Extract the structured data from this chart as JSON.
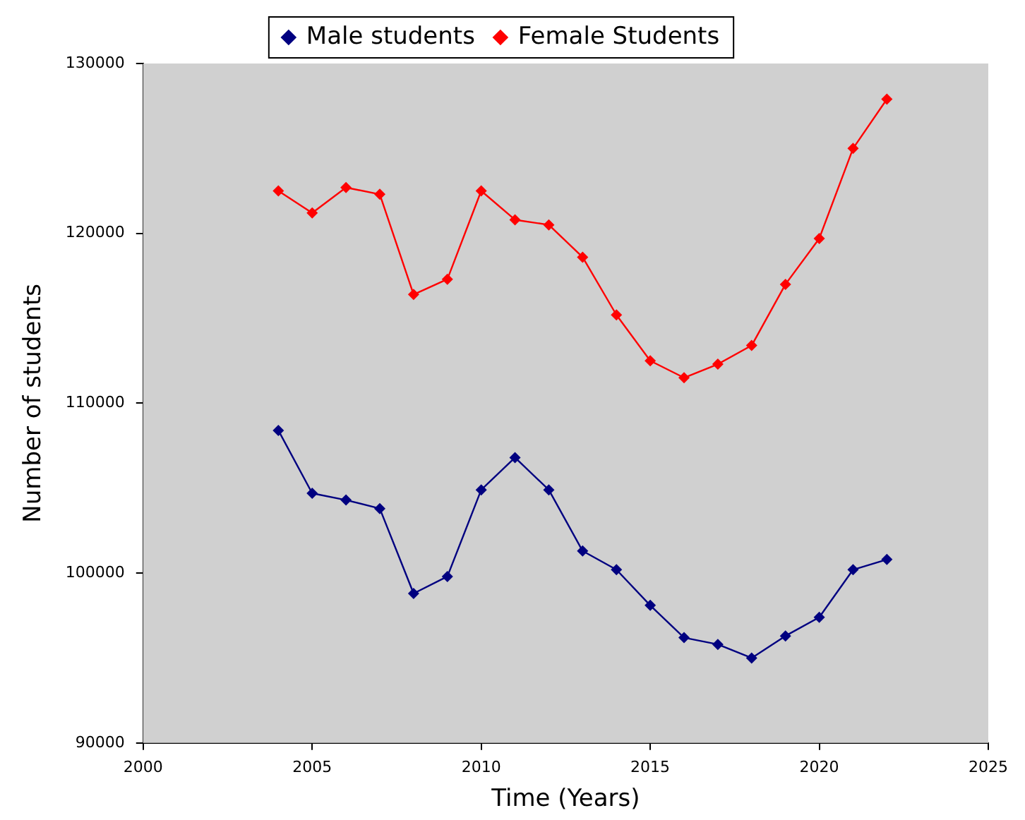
{
  "chart_data": {
    "type": "line",
    "xlabel": "Time (Years)",
    "ylabel": "Number of students",
    "x": [
      2004,
      2005,
      2006,
      2007,
      2008,
      2009,
      2010,
      2011,
      2012,
      2013,
      2014,
      2015,
      2016,
      2017,
      2018,
      2019,
      2020,
      2021,
      2022
    ],
    "series": [
      {
        "name": "Male students",
        "color": "#000080",
        "values": [
          108400,
          104700,
          104300,
          103800,
          98800,
          99800,
          104900,
          106800,
          104900,
          101300,
          100200,
          98100,
          96200,
          95800,
          95000,
          96300,
          97400,
          100200,
          100800
        ]
      },
      {
        "name": "Female Students",
        "color": "#ff0000",
        "values": [
          122500,
          121200,
          122700,
          122300,
          116400,
          117300,
          122500,
          120800,
          120500,
          118600,
          115200,
          112500,
          111500,
          112300,
          113400,
          117000,
          119700,
          125000,
          127900
        ]
      }
    ],
    "xlim": [
      2000,
      2025
    ],
    "xticks": [
      2000,
      2005,
      2010,
      2015,
      2020,
      2025
    ],
    "ylim": [
      90000,
      130000
    ],
    "yticks": [
      90000,
      100000,
      110000,
      120000,
      130000
    ],
    "grid": false,
    "legend": "top",
    "marker": "diamond",
    "line_style": "solid"
  }
}
